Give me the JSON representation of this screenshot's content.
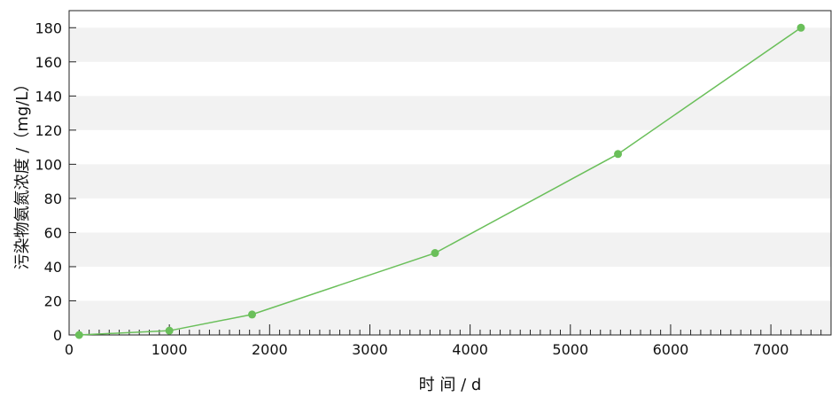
{
  "chart_data": {
    "type": "line",
    "xlabel": "时 间 / d",
    "ylabel": "污染物氨氮浓度 /（mg/L）",
    "xlim": [
      0,
      7600
    ],
    "ylim": [
      0,
      190
    ],
    "xticks": [
      0,
      1000,
      2000,
      3000,
      4000,
      5000,
      6000,
      7000
    ],
    "xtick_labels": [
      "0",
      "1000",
      "2000",
      "3000",
      "4000",
      "5000",
      "6000",
      "7000"
    ],
    "yticks": [
      0,
      20,
      40,
      60,
      80,
      100,
      120,
      140,
      160,
      180
    ],
    "ytick_labels": [
      "0",
      "20",
      "40",
      "60",
      "80",
      "100",
      "120",
      "140",
      "160",
      "180"
    ],
    "x_minor_step": 100,
    "grid": "alternating horizontal bands",
    "series": [
      {
        "x": [
          100,
          1000,
          1825,
          3650,
          5475,
          7300
        ],
        "y": [
          0,
          2.5,
          12,
          48,
          106,
          180
        ],
        "color": "#6abf5a",
        "marker": "circle"
      }
    ],
    "colors": {
      "band": "#f2f2f2",
      "line": "#6abf5a",
      "axis": "#222222"
    }
  }
}
